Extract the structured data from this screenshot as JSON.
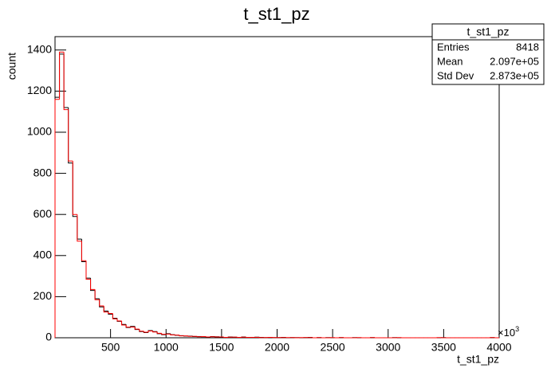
{
  "chart_data": {
    "type": "histogram",
    "title": "t_st1_pz",
    "x_label": "t_st1_pz",
    "y_label": "count",
    "x_multiplier": "×10",
    "x_multiplier_exponent": "3",
    "bins": [
      0,
      40,
      80,
      120,
      160,
      200,
      240,
      280,
      320,
      360,
      400,
      440,
      480,
      520,
      560,
      600,
      640,
      680,
      720,
      760,
      800,
      840,
      880,
      920,
      960,
      1000,
      1040,
      1080,
      1120,
      1160,
      1200,
      1240,
      1280,
      1320,
      1360,
      1400,
      1440,
      1480,
      1520,
      1560,
      1600,
      1640,
      1680,
      1720,
      1760,
      1800,
      1840,
      1880,
      1920,
      1960,
      2000,
      2040,
      2080,
      2120,
      2160,
      2200,
      2240,
      2280,
      2320,
      2360,
      2400,
      2440,
      2480,
      2520,
      2560,
      2600,
      2640,
      2680,
      2720,
      2760,
      2800,
      2840,
      2880,
      2920,
      2960,
      3000,
      3040,
      3080,
      3120,
      3160,
      3200,
      3240,
      3280,
      3320,
      3360,
      3400,
      3440,
      3480,
      3520,
      3560,
      3600,
      3640,
      3680,
      3720,
      3760,
      3800,
      3840,
      3880,
      3920,
      3960,
      4000
    ],
    "series": [
      {
        "color": "#000000",
        "values": [
          1170,
          1380,
          1120,
          850,
          590,
          480,
          370,
          290,
          230,
          190,
          150,
          130,
          115,
          95,
          80,
          65,
          50,
          55,
          40,
          30,
          25,
          35,
          30,
          20,
          15,
          20,
          15,
          12,
          10,
          8,
          8,
          6,
          6,
          5,
          4,
          6,
          5,
          3,
          2,
          4,
          3,
          2,
          4,
          2,
          1,
          3,
          2,
          1,
          2,
          1,
          1,
          2,
          0,
          1,
          1,
          0,
          1,
          2,
          0,
          1,
          0,
          1,
          0,
          0,
          1,
          0,
          0,
          1,
          0,
          0,
          0,
          1,
          0,
          0,
          0,
          0,
          1,
          0,
          0,
          0,
          0,
          0,
          0,
          0,
          0,
          0,
          0,
          1,
          0,
          0,
          0,
          0,
          0,
          0,
          0,
          0,
          0,
          0,
          1,
          0
        ]
      },
      {
        "color": "#ff0000",
        "values": [
          1160,
          1390,
          1110,
          860,
          600,
          470,
          375,
          285,
          235,
          185,
          155,
          125,
          118,
          92,
          82,
          62,
          52,
          52,
          42,
          32,
          27,
          33,
          28,
          22,
          17,
          18,
          14,
          13,
          9,
          9,
          7,
          7,
          5,
          6,
          4,
          5,
          4,
          4,
          2,
          3,
          3,
          2,
          3,
          2,
          2,
          2,
          1,
          1,
          2,
          1,
          1,
          1,
          1,
          1,
          0,
          1,
          1,
          1,
          0,
          1,
          0,
          0,
          1,
          0,
          1,
          0,
          0,
          0,
          1,
          0,
          0,
          1,
          0,
          0,
          0,
          0,
          0,
          1,
          0,
          0,
          0,
          0,
          0,
          0,
          0,
          0,
          1,
          0,
          0,
          0,
          0,
          0,
          0,
          0,
          0,
          0,
          0,
          0,
          1,
          0
        ]
      }
    ],
    "xlim": [
      0,
      4000
    ],
    "xticks": [
      500,
      1000,
      1500,
      2000,
      2500,
      3000,
      3500,
      4000
    ],
    "ylim": [
      0,
      1465
    ],
    "yticks": [
      0,
      200,
      400,
      600,
      800,
      1000,
      1200,
      1400
    ],
    "stats": {
      "title": "t_st1_pz",
      "rows": [
        [
          "Entries",
          "8418"
        ],
        [
          "Mean",
          "2.097e+05"
        ],
        [
          "Std Dev",
          "2.873e+05"
        ]
      ]
    }
  }
}
